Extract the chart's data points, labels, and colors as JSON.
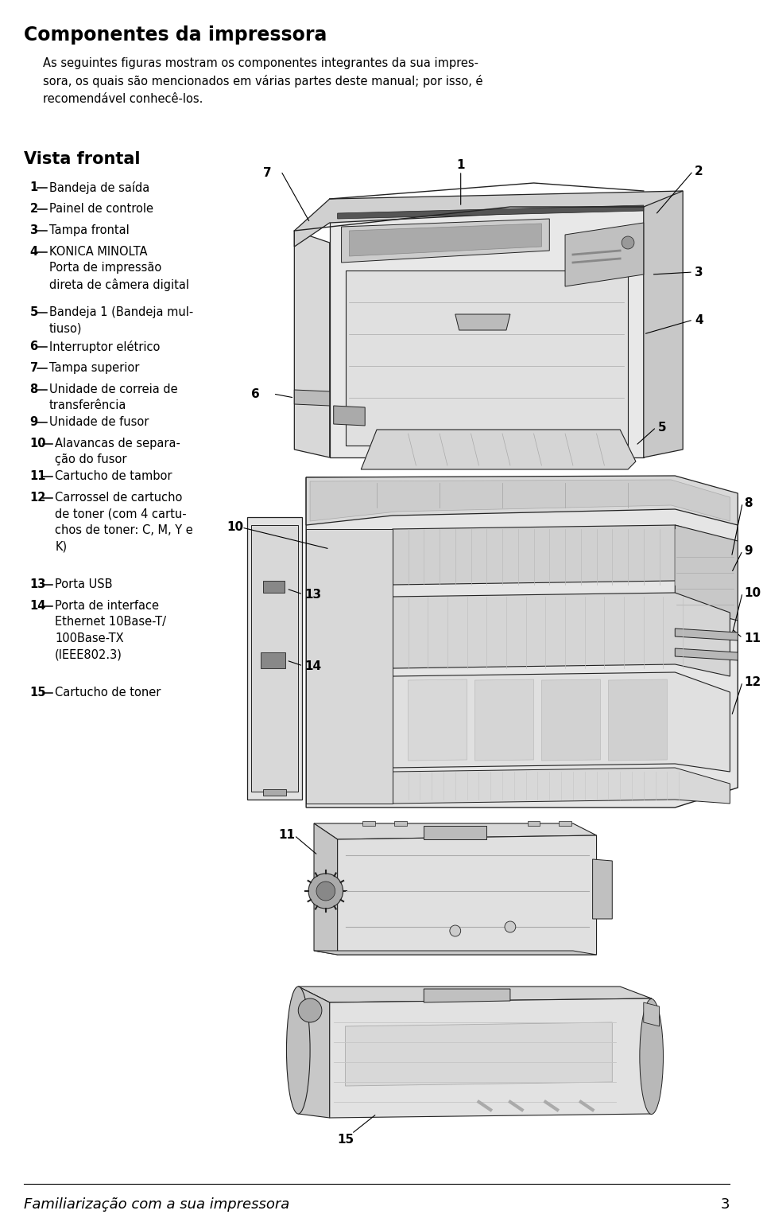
{
  "bg_color": "#ffffff",
  "title": "Componentes da impressora",
  "title_fontsize": 17,
  "intro_text": "As seguintes figuras mostram os componentes integrantes da sua impres-\nsora, os quais são mencionados em várias partes deste manual; por isso, é\nrecomendável conhecê-los.",
  "section1_title": "Vista frontal",
  "section1_title_fontsize": 15,
  "items": [
    {
      "num": "1",
      "text": "Bandeja de saída"
    },
    {
      "num": "2",
      "text": "Painel de controle"
    },
    {
      "num": "3",
      "text": "Tampa frontal"
    },
    {
      "num": "4",
      "text": "KONICA MINOLTA\nPorta de impressão\ndireta de câmera digital"
    },
    {
      "num": "5",
      "text": "Bandeja 1 (Bandeja mul-\ntiuso)"
    },
    {
      "num": "6",
      "text": "Interruptor elétrico"
    },
    {
      "num": "7",
      "text": "Tampa superior"
    },
    {
      "num": "8",
      "text": "Unidade de correia de\ntransferência"
    },
    {
      "num": "9",
      "text": "Unidade de fusor"
    },
    {
      "num": "10",
      "text": "Alavancas de separa-\nção do fusor"
    },
    {
      "num": "11",
      "text": "Cartucho de tambor"
    },
    {
      "num": "12",
      "text": "Carrossel de cartucho\nde toner (com 4 cartu-\nchos de toner: C, M, Y e\nK)"
    },
    {
      "num": "13",
      "text": "Porta USB"
    },
    {
      "num": "14",
      "text": "Porta de interface\nEthernet 10Base-T/\n100Base-TX\n(IEEE802.3)"
    },
    {
      "num": "15",
      "text": "Cartucho de toner"
    }
  ],
  "footer_text": "Familiarização com a sua impressora",
  "footer_page": "3",
  "text_color": "#000000",
  "item_fontsize": 10.5,
  "label_num_fontsize": 11
}
